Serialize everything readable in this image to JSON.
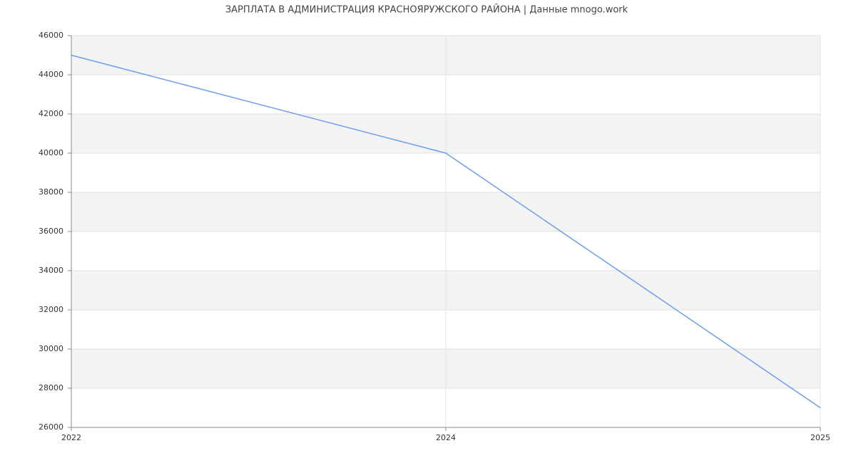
{
  "chart_data": {
    "type": "line",
    "title": "ЗАРПЛАТА В АДМИНИСТРАЦИЯ КРАСНОЯРУЖСКОГО РАЙОНА | Данные mnogo.work",
    "categories": [
      "2022",
      "2024",
      "2025"
    ],
    "values": [
      45000,
      40000,
      27000
    ],
    "color": "#6d9eeb",
    "ylim": [
      26000,
      46000
    ],
    "yticks": [
      26000,
      28000,
      30000,
      32000,
      34000,
      36000,
      38000,
      40000,
      42000,
      44000,
      46000
    ],
    "grid": true
  }
}
